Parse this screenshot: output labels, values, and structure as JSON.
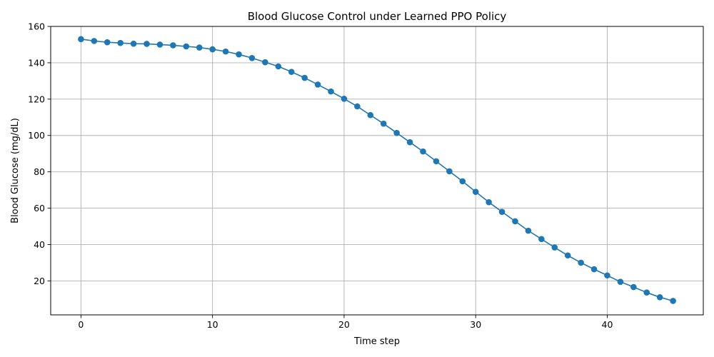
{
  "chart_data": {
    "type": "line",
    "title": "Blood Glucose Control under Learned PPO Policy",
    "xlabel": "Time step",
    "ylabel": "Blood Glucose (mg/dL)",
    "xlim": [
      -2.3,
      47.3
    ],
    "ylim": [
      1.3,
      160
    ],
    "xticks": [
      0,
      10,
      20,
      30,
      40
    ],
    "yticks": [
      20,
      40,
      60,
      80,
      100,
      120,
      140,
      160
    ],
    "grid": true,
    "legend": "none",
    "series": [
      {
        "color": "#1f77b4",
        "marker": "circle",
        "x": [
          0,
          1,
          2,
          3,
          4,
          5,
          6,
          7,
          8,
          9,
          10,
          11,
          12,
          13,
          14,
          15,
          16,
          17,
          18,
          19,
          20,
          21,
          22,
          23,
          24,
          25,
          26,
          27,
          28,
          29,
          30,
          31,
          32,
          33,
          34,
          35,
          36,
          37,
          38,
          39,
          40,
          41,
          42,
          43,
          44,
          45
        ],
        "y": [
          153.0,
          152.0,
          151.3,
          150.9,
          150.5,
          150.4,
          150.0,
          149.6,
          149.0,
          148.4,
          147.4,
          146.2,
          144.6,
          142.6,
          140.3,
          138.0,
          135.0,
          131.7,
          128.0,
          124.2,
          120.2,
          116.0,
          111.2,
          106.5,
          101.4,
          96.3,
          91.2,
          85.8,
          80.3,
          74.8,
          69.0,
          63.3,
          58.0,
          52.8,
          47.6,
          43.0,
          38.4,
          34.0,
          30.0,
          26.4,
          23.0,
          19.5,
          16.6,
          13.6,
          11.0,
          9.0
        ]
      }
    ]
  }
}
